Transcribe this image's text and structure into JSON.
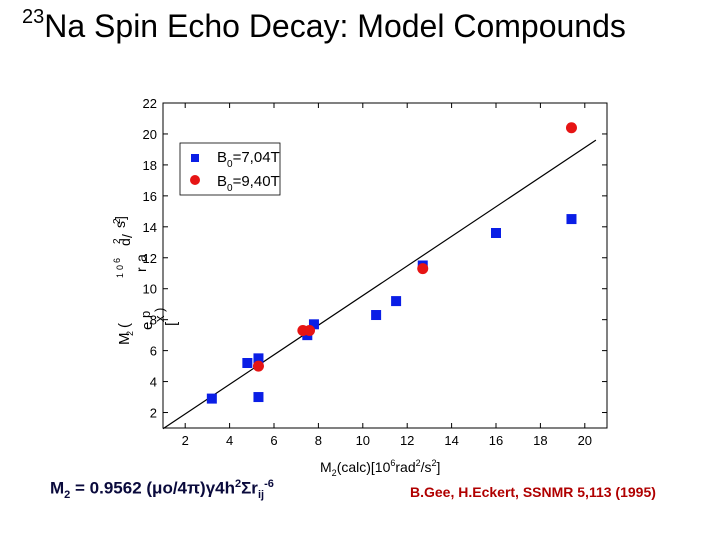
{
  "slide": {
    "title_sup": "23",
    "title_text": "Na Spin Echo Decay: Model Compounds",
    "formula": {
      "m": "M",
      "m_sub": "2",
      "eq": " = 0.9562 (μo/4π)γ4h",
      "h_sup": "2",
      "sum": "Σr",
      "r_sub": "ij",
      "r_sup": "-6"
    },
    "citation": "B.Gee, H.Eckert, SSNMR 5,113 (1995)"
  },
  "chart_data": {
    "type": "scatter",
    "xlim": [
      1,
      21
    ],
    "ylim": [
      1,
      22
    ],
    "x_ticks": [
      2,
      4,
      6,
      8,
      10,
      12,
      14,
      16,
      18,
      20
    ],
    "y_ticks": [
      2,
      4,
      6,
      8,
      10,
      12,
      14,
      16,
      18,
      20,
      22
    ],
    "xlabel": {
      "p1": "M",
      "s1": "2",
      "p2": "(calc)[10",
      "s2": "6",
      "p3": "rad",
      "s3": "2",
      "p4": "/s",
      "s4": "2",
      "p5": "]"
    },
    "ylabel_fragments": [
      "M",
      "2",
      "(",
      "e",
      "x",
      "p",
      ")",
      "[",
      "1",
      "0",
      "6",
      "r",
      "a",
      "d",
      "2",
      "/",
      "s",
      "2",
      "]"
    ],
    "legend": {
      "position": "top-left"
    },
    "series": [
      {
        "name_main": "B",
        "name_sub": "0",
        "name_rest": "=7,04T",
        "marker": "square",
        "color": "#0a1ee6",
        "points": [
          [
            3.2,
            2.9
          ],
          [
            4.8,
            5.2
          ],
          [
            5.3,
            3.0
          ],
          [
            5.3,
            5.5
          ],
          [
            7.5,
            7.0
          ],
          [
            7.8,
            7.7
          ],
          [
            10.6,
            8.3
          ],
          [
            11.5,
            9.2
          ],
          [
            12.7,
            11.5
          ],
          [
            16.0,
            13.6
          ],
          [
            19.4,
            14.5
          ]
        ]
      },
      {
        "name_main": "B",
        "name_sub": "0",
        "name_rest": "=9,40T",
        "marker": "circle",
        "color": "#e61414",
        "points": [
          [
            5.3,
            5.0
          ],
          [
            7.3,
            7.3
          ],
          [
            7.6,
            7.3
          ],
          [
            12.7,
            11.3
          ],
          [
            19.4,
            20.4
          ]
        ]
      }
    ],
    "fit_line": {
      "x": [
        1,
        20.5
      ],
      "y": [
        0.95,
        19.6
      ]
    }
  }
}
